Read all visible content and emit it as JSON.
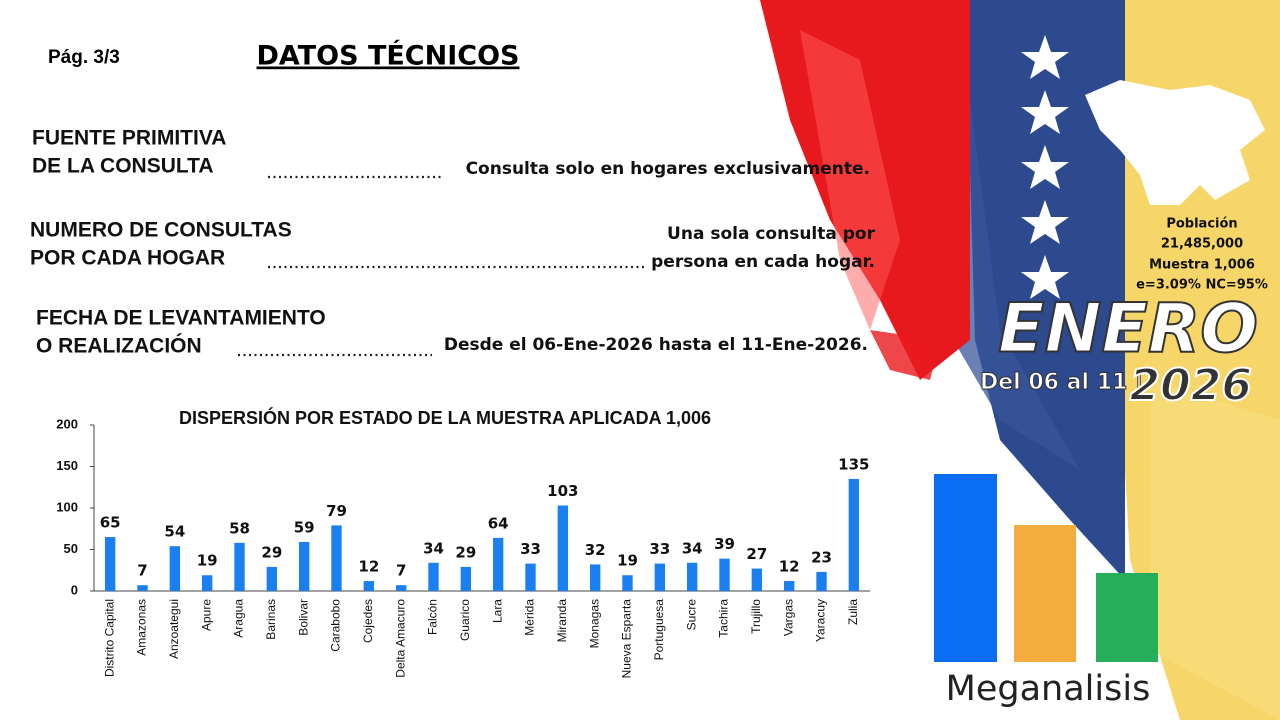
{
  "page": "Pág.  3/3",
  "title": "DATOS TÉCNICOS",
  "sections": [
    {
      "label": [
        "FUENTE PRIMITIVA",
        "DE LA CONSULTA"
      ],
      "value": [
        "Consulta solo en hogares exclusivamente."
      ]
    },
    {
      "label": [
        "NUMERO DE CONSULTAS",
        "POR CADA HOGAR"
      ],
      "value": [
        "Una sola consulta por",
        "persona en cada hogar."
      ]
    },
    {
      "label": [
        "FECHA DE LEVANTAMIENTO",
        "O REALIZACIÓN"
      ],
      "value": [
        "Desde el 06-Ene-2026 hasta el 11-Ene-2026."
      ]
    }
  ],
  "info": [
    "Población",
    "21,485,000",
    "Muestra 1,006",
    "e=3.09%  NC=95%"
  ],
  "banner": {
    "month": "ENERO",
    "range": "Del 06 al 11 |",
    "year": "2026"
  },
  "brand": "Meganalisis",
  "chart_data": {
    "type": "bar",
    "title": "DISPERSIÓN POR ESTADO DE LA MUESTRA APLICADA 1,006",
    "categories": [
      "Distrito Capital",
      "Amazonas",
      "Anzoategui",
      "Apure",
      "Aragua",
      "Barinas",
      "Bolivar",
      "Carabobo",
      "Cojedes",
      "Delta Amacuro",
      "Falcón",
      "Guarico",
      "Lara",
      "Mérida",
      "Miranda",
      "Monagas",
      "Nueva Esparta",
      "Portuguesa",
      "Sucre",
      "Tachira",
      "Trujillo",
      "Vargas",
      "Yaracuy",
      "Zulia"
    ],
    "values": [
      65,
      7,
      54,
      19,
      58,
      29,
      59,
      79,
      12,
      7,
      34,
      29,
      64,
      33,
      103,
      32,
      19,
      33,
      34,
      39,
      27,
      12,
      23,
      135
    ],
    "color": "#1a7ff0",
    "ylim": [
      0,
      200
    ],
    "yticks": [
      0,
      50,
      100,
      150,
      200
    ],
    "grid": false
  }
}
